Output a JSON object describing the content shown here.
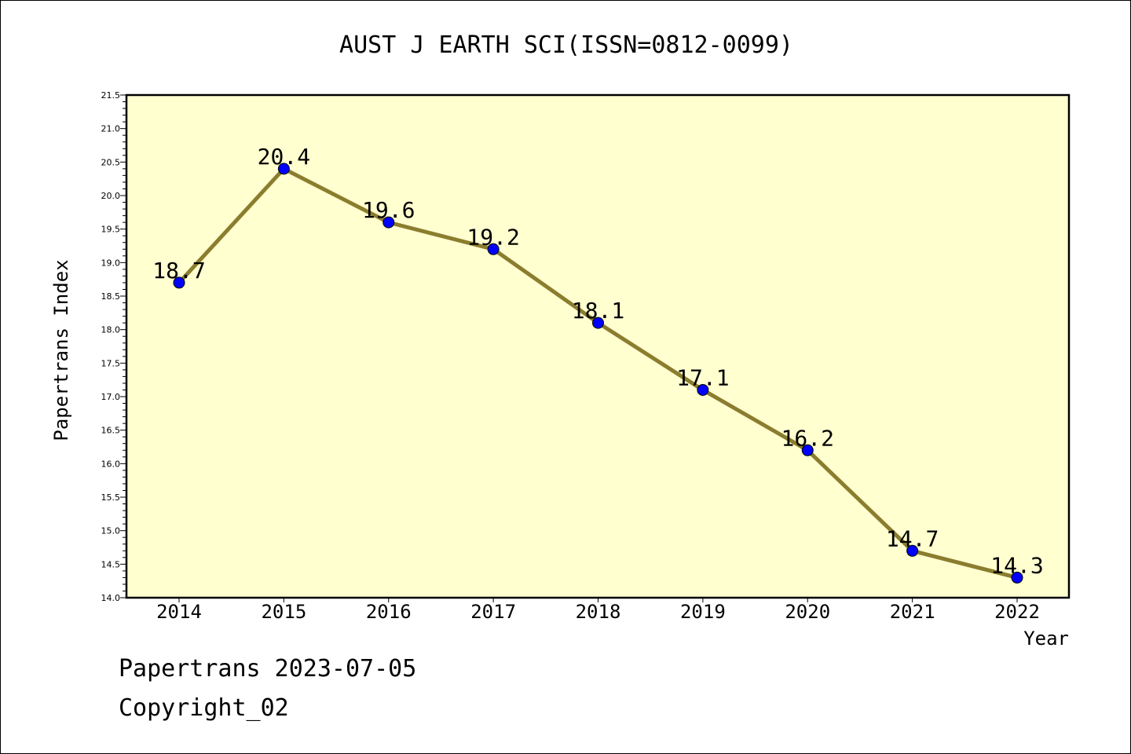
{
  "chart_data": {
    "type": "line",
    "title": "AUST J EARTH SCI(ISSN=0812-0099)",
    "xlabel": "Year",
    "ylabel": "Papertrans Index",
    "categories": [
      "2014",
      "2015",
      "2016",
      "2017",
      "2018",
      "2019",
      "2020",
      "2021",
      "2022"
    ],
    "series": [
      {
        "values": [
          18.7,
          20.4,
          19.6,
          19.2,
          18.1,
          17.1,
          16.2,
          14.7,
          14.3
        ]
      }
    ],
    "data_labels": [
      "18.7",
      "20.4",
      "19.6",
      "19.2",
      "18.1",
      "17.1",
      "16.2",
      "14.7",
      "14.3"
    ],
    "ylim": [
      14.0,
      21.5
    ],
    "yticks": [
      "14.0",
      "14.5",
      "15.0",
      "15.5",
      "16.0",
      "16.5",
      "17.0",
      "17.5",
      "18.0",
      "18.5",
      "19.0",
      "19.5",
      "20.0",
      "20.5",
      "21.0",
      "21.5"
    ],
    "grid": false,
    "legend": "none",
    "colors": {
      "plot_background": "#ffffd0",
      "line": "#8b7d2e",
      "marker": "#0000ff"
    }
  },
  "footer": {
    "line1": "Papertrans 2023-07-05",
    "line2": "Copyright_02"
  }
}
